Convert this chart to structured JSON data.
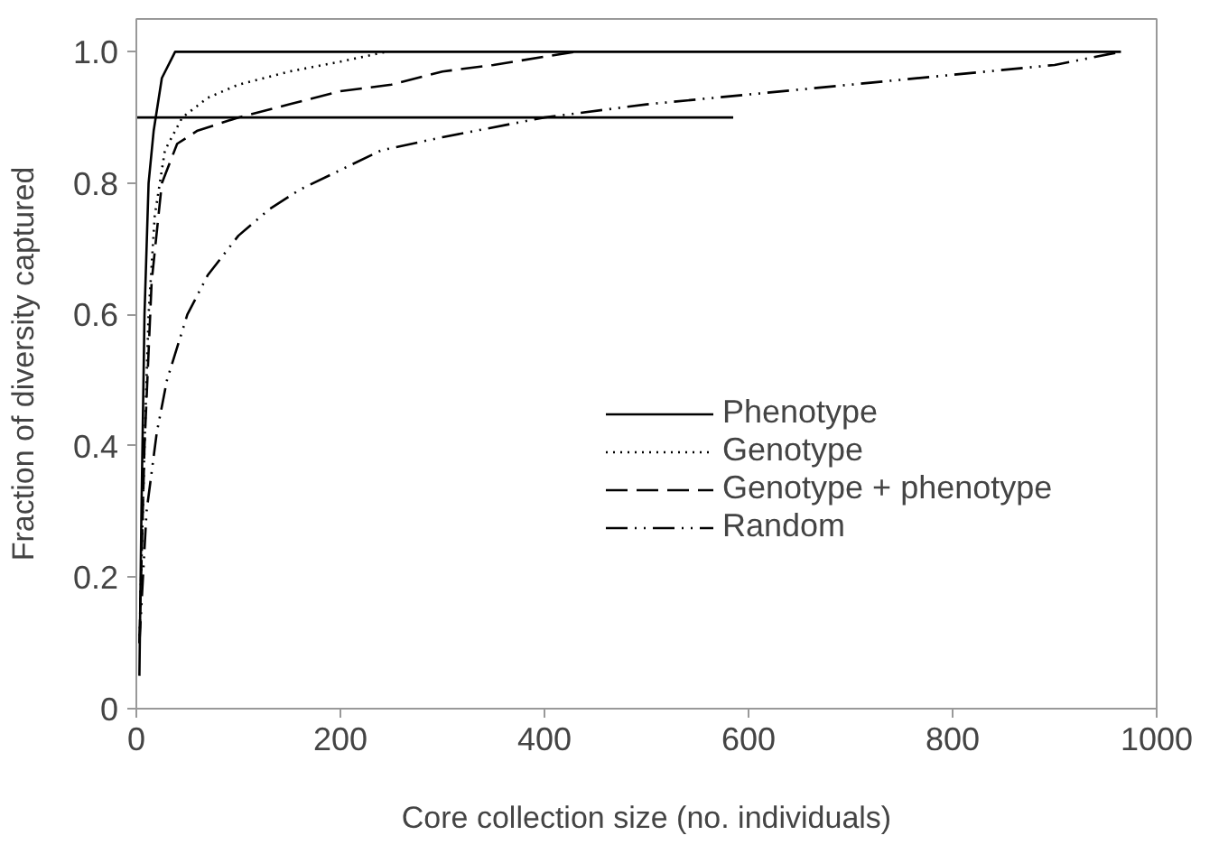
{
  "chart_data": {
    "type": "line",
    "xlabel": "Core collection size (no. individuals)",
    "ylabel": "Fraction of diversity captured",
    "xlim": [
      0,
      1000
    ],
    "ylim": [
      0,
      1.05
    ],
    "xticks": [
      0,
      200,
      400,
      600,
      800,
      1000
    ],
    "yticks": [
      0,
      {
        "value": 0.2,
        "label": "0.2"
      },
      {
        "value": 0.4,
        "label": "0.4"
      },
      {
        "value": 0.6,
        "label": "0.6"
      },
      {
        "value": 0.8,
        "label": "0.8"
      },
      {
        "value": 1,
        "label": "1.0"
      }
    ],
    "grid": false,
    "legend": "right",
    "marker": "none",
    "series": [
      {
        "name": "Phenotype",
        "color": "#000000",
        "line_style": "solid",
        "x": [
          3,
          5,
          8,
          12,
          17,
          25,
          38,
          965
        ],
        "values": [
          0.05,
          0.3,
          0.6,
          0.8,
          0.88,
          0.96,
          1.0,
          1.0
        ]
      },
      {
        "name": "Genotype",
        "color": "#000000",
        "line_style": "dotted",
        "x": [
          3,
          8,
          12,
          18,
          28,
          45,
          70,
          100,
          150,
          200,
          245
        ],
        "values": [
          0.1,
          0.4,
          0.6,
          0.75,
          0.85,
          0.9,
          0.93,
          0.95,
          0.97,
          0.985,
          1.0
        ]
      },
      {
        "name": "Genotype + phenotype",
        "color": "#000000",
        "line_style": "dashed",
        "x": [
          3,
          8,
          15,
          25,
          40,
          60,
          100,
          150,
          200,
          250,
          300,
          350,
          430
        ],
        "values": [
          0.1,
          0.4,
          0.65,
          0.8,
          0.86,
          0.88,
          0.9,
          0.92,
          0.94,
          0.95,
          0.97,
          0.98,
          1.0
        ]
      },
      {
        "name": "Random",
        "color": "#000000",
        "line_style": "dashdot",
        "x": [
          3,
          10,
          20,
          30,
          50,
          70,
          100,
          130,
          160,
          200,
          240,
          300,
          400,
          500,
          600,
          700,
          800,
          900,
          965
        ],
        "values": [
          0.1,
          0.3,
          0.42,
          0.5,
          0.6,
          0.66,
          0.72,
          0.76,
          0.79,
          0.82,
          0.85,
          0.87,
          0.9,
          0.92,
          0.935,
          0.95,
          0.965,
          0.98,
          1.0
        ]
      },
      {
        "color": "#000000",
        "line_style": "solid",
        "x": [
          0,
          585
        ],
        "values": [
          0.9,
          0.9
        ]
      }
    ]
  }
}
